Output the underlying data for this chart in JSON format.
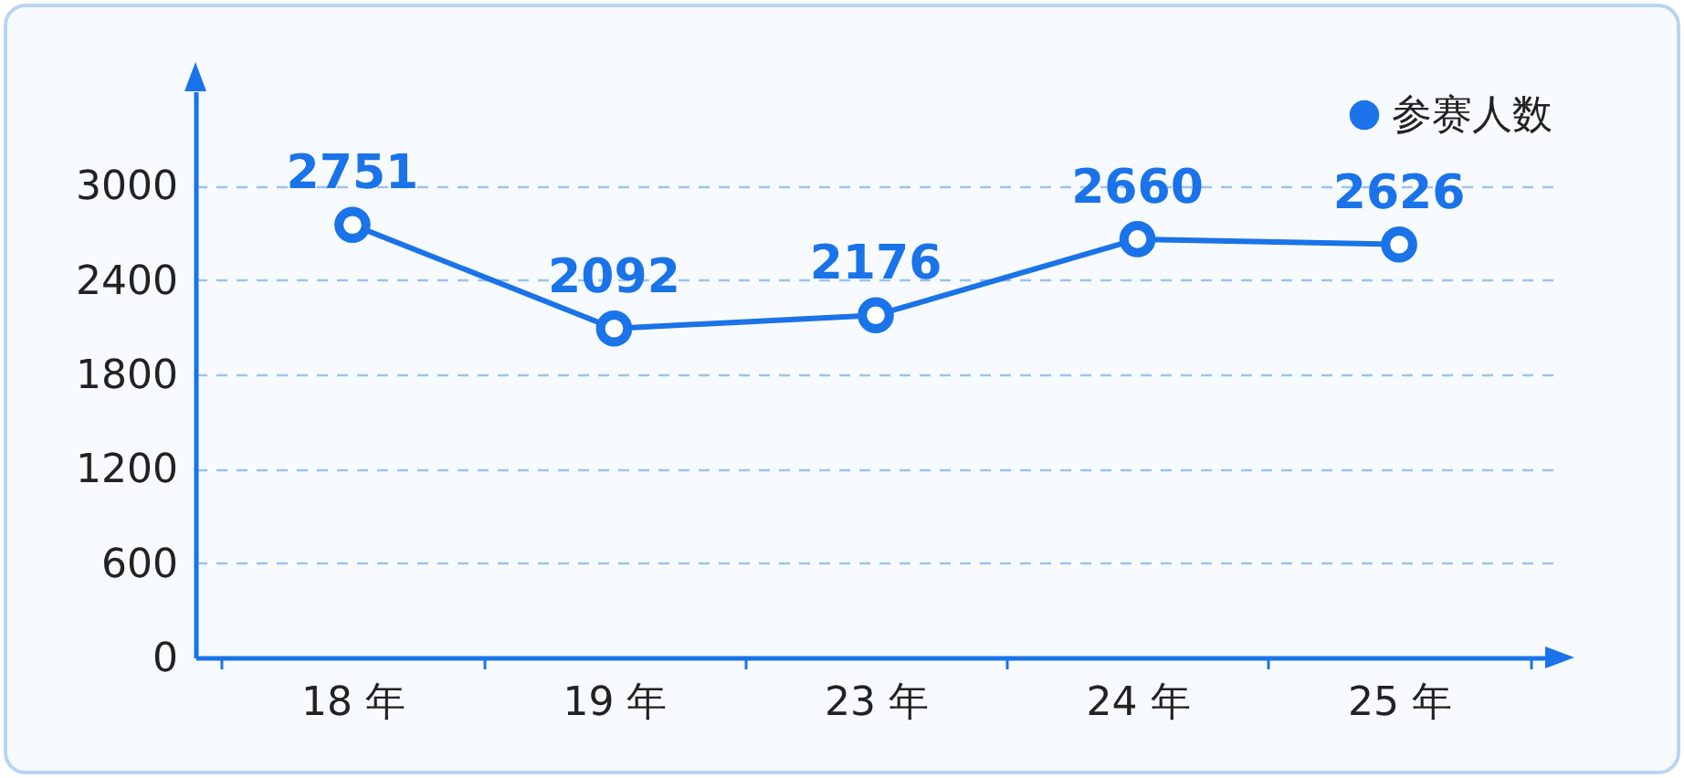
{
  "chart_data": {
    "type": "line",
    "categories": [
      "18 年",
      "19 年",
      "23 年",
      "24 年",
      "25 年"
    ],
    "series": [
      {
        "name": "参赛人数",
        "color": "#1a73e8",
        "values": [
          2751,
          2092,
          2176,
          2660,
          2626
        ]
      }
    ],
    "ylim": [
      0,
      3600
    ],
    "yticks": [
      0,
      600,
      1200,
      1800,
      2400,
      3000
    ],
    "grid": "y",
    "legend": "top right",
    "marker": "circle",
    "line_style": "solid",
    "data_labels": true
  }
}
